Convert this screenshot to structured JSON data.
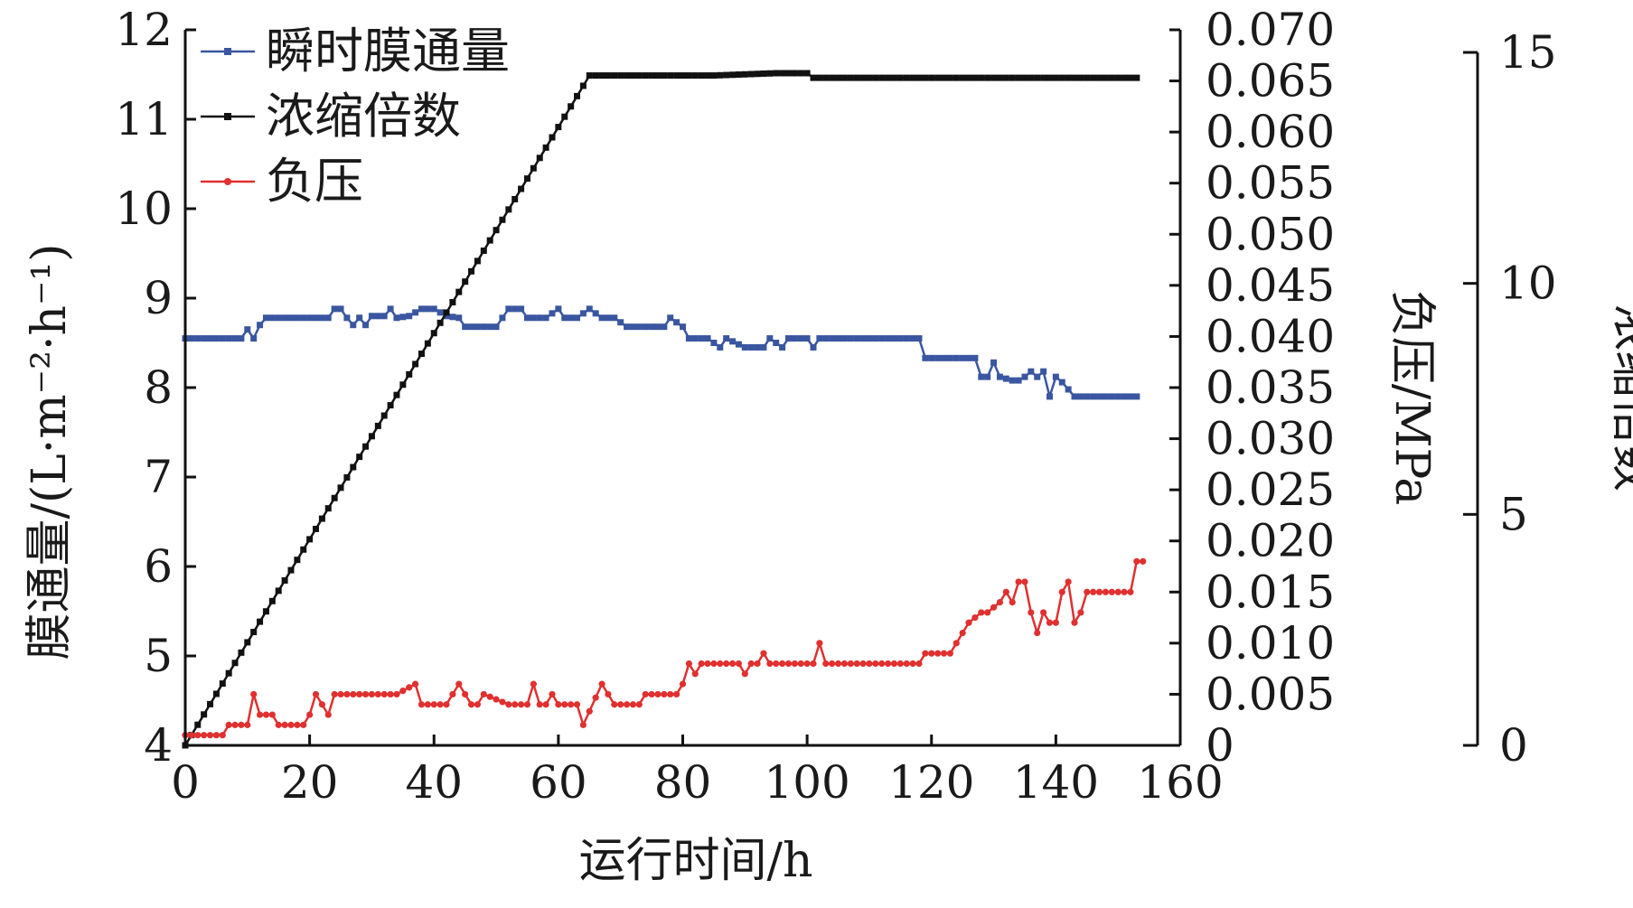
{
  "chart_data": {
    "type": "line",
    "xlabel": "运行时间/h",
    "xlim": [
      0,
      160
    ],
    "xticks": [
      0,
      20,
      40,
      60,
      80,
      100,
      120,
      140,
      160
    ],
    "axes": {
      "flux": {
        "label": "膜通量/(L·m⁻²·h⁻¹)",
        "lim": [
          4,
          12
        ],
        "ticks": [
          4,
          5,
          6,
          7,
          8,
          9,
          10,
          11,
          12
        ],
        "tick_labels": [
          "4",
          "5",
          "6",
          "7",
          "8",
          "9",
          "10",
          "11",
          "12"
        ]
      },
      "pressure": {
        "label": "负压/MPa",
        "lim": [
          0,
          0.07
        ],
        "ticks": [
          0,
          0.005,
          0.01,
          0.015,
          0.02,
          0.025,
          0.03,
          0.035,
          0.04,
          0.045,
          0.05,
          0.055,
          0.06,
          0.065,
          0.07
        ],
        "tick_labels": [
          "0",
          "0.005",
          "0.010",
          "0.015",
          "0.020",
          "0.025",
          "0.030",
          "0.035",
          "0.040",
          "0.045",
          "0.050",
          "0.055",
          "0.060",
          "0.065",
          "0.070"
        ]
      },
      "conc": {
        "label": "浓缩倍数",
        "lim": [
          0,
          15
        ],
        "ticks": [
          0,
          5,
          10,
          15
        ],
        "tick_labels": [
          "0",
          "5",
          "10",
          "15"
        ]
      }
    },
    "legend_position": "top-left",
    "series": [
      {
        "name": "瞬时膜通量",
        "axis": "flux",
        "color": "#3a56a0",
        "marker": "square",
        "points": [
          [
            0,
            8.55
          ],
          [
            5,
            8.55
          ],
          [
            9,
            8.55
          ],
          [
            10,
            8.65
          ],
          [
            11,
            8.55
          ],
          [
            12,
            8.7
          ],
          [
            13,
            8.78
          ],
          [
            18,
            8.78
          ],
          [
            23,
            8.78
          ],
          [
            24,
            8.88
          ],
          [
            25,
            8.88
          ],
          [
            26,
            8.78
          ],
          [
            27,
            8.7
          ],
          [
            28,
            8.78
          ],
          [
            29,
            8.7
          ],
          [
            30,
            8.8
          ],
          [
            32,
            8.8
          ],
          [
            33,
            8.88
          ],
          [
            34,
            8.78
          ],
          [
            36,
            8.8
          ],
          [
            38,
            8.88
          ],
          [
            40,
            8.88
          ],
          [
            42,
            8.8
          ],
          [
            44,
            8.78
          ],
          [
            45,
            8.68
          ],
          [
            48,
            8.68
          ],
          [
            50,
            8.68
          ],
          [
            52,
            8.88
          ],
          [
            54,
            8.88
          ],
          [
            55,
            8.78
          ],
          [
            58,
            8.78
          ],
          [
            60,
            8.88
          ],
          [
            61,
            8.78
          ],
          [
            63,
            8.78
          ],
          [
            65,
            8.88
          ],
          [
            67,
            8.78
          ],
          [
            69,
            8.78
          ],
          [
            71,
            8.68
          ],
          [
            75,
            8.68
          ],
          [
            77,
            8.68
          ],
          [
            78,
            8.78
          ],
          [
            80,
            8.68
          ],
          [
            81,
            8.55
          ],
          [
            84,
            8.55
          ],
          [
            86,
            8.45
          ],
          [
            87,
            8.55
          ],
          [
            90,
            8.45
          ],
          [
            93,
            8.45
          ],
          [
            94,
            8.55
          ],
          [
            96,
            8.45
          ],
          [
            97,
            8.55
          ],
          [
            100,
            8.55
          ],
          [
            101,
            8.45
          ],
          [
            102,
            8.55
          ],
          [
            106,
            8.55
          ],
          [
            110,
            8.55
          ],
          [
            115,
            8.55
          ],
          [
            118,
            8.55
          ],
          [
            119,
            8.33
          ],
          [
            124,
            8.33
          ],
          [
            127,
            8.33
          ],
          [
            128,
            8.12
          ],
          [
            129,
            8.12
          ],
          [
            130,
            8.28
          ],
          [
            131,
            8.12
          ],
          [
            133,
            8.08
          ],
          [
            134,
            8.08
          ],
          [
            135,
            8.12
          ],
          [
            136,
            8.18
          ],
          [
            137,
            8.12
          ],
          [
            138,
            8.18
          ],
          [
            139,
            7.9
          ],
          [
            140,
            8.12
          ],
          [
            141,
            8.06
          ],
          [
            143,
            7.9
          ],
          [
            148,
            7.9
          ],
          [
            153,
            7.9
          ]
        ]
      },
      {
        "name": "浓缩倍数",
        "axis": "conc",
        "color": "#111111",
        "marker": "square",
        "points": [
          [
            0,
            0
          ],
          [
            65,
            14.5
          ],
          [
            72,
            14.5
          ],
          [
            85,
            14.5
          ],
          [
            95,
            14.55
          ],
          [
            100,
            14.55
          ],
          [
            101,
            14.45
          ],
          [
            110,
            14.45
          ],
          [
            153,
            14.45
          ]
        ]
      },
      {
        "name": "负压",
        "axis": "pressure",
        "color": "#e03030",
        "marker": "circle",
        "points": [
          [
            0,
            0.001
          ],
          [
            4,
            0.001
          ],
          [
            6,
            0.001
          ],
          [
            7,
            0.002
          ],
          [
            10,
            0.002
          ],
          [
            11,
            0.005
          ],
          [
            12,
            0.003
          ],
          [
            14,
            0.003
          ],
          [
            15,
            0.002
          ],
          [
            19,
            0.002
          ],
          [
            20,
            0.003
          ],
          [
            21,
            0.005
          ],
          [
            22,
            0.004
          ],
          [
            23,
            0.003
          ],
          [
            24,
            0.005
          ],
          [
            30,
            0.005
          ],
          [
            34,
            0.005
          ],
          [
            37,
            0.006
          ],
          [
            38,
            0.004
          ],
          [
            42,
            0.004
          ],
          [
            44,
            0.006
          ],
          [
            46,
            0.004
          ],
          [
            47,
            0.004
          ],
          [
            48,
            0.005
          ],
          [
            52,
            0.004
          ],
          [
            55,
            0.004
          ],
          [
            56,
            0.006
          ],
          [
            57,
            0.004
          ],
          [
            58,
            0.004
          ],
          [
            59,
            0.005
          ],
          [
            60,
            0.004
          ],
          [
            63,
            0.004
          ],
          [
            64,
            0.002
          ],
          [
            67,
            0.006
          ],
          [
            69,
            0.004
          ],
          [
            73,
            0.004
          ],
          [
            74,
            0.005
          ],
          [
            79,
            0.005
          ],
          [
            80,
            0.006
          ],
          [
            81,
            0.008
          ],
          [
            82,
            0.007
          ],
          [
            83,
            0.008
          ],
          [
            86,
            0.008
          ],
          [
            89,
            0.008
          ],
          [
            90,
            0.007
          ],
          [
            91,
            0.008
          ],
          [
            92,
            0.008
          ],
          [
            93,
            0.009
          ],
          [
            94,
            0.008
          ],
          [
            101,
            0.008
          ],
          [
            102,
            0.01
          ],
          [
            103,
            0.008
          ],
          [
            104,
            0.008
          ],
          [
            110,
            0.008
          ],
          [
            117,
            0.008
          ],
          [
            118,
            0.008
          ],
          [
            119,
            0.009
          ],
          [
            123,
            0.009
          ],
          [
            124,
            0.01
          ],
          [
            125,
            0.011
          ],
          [
            126,
            0.012
          ],
          [
            128,
            0.013
          ],
          [
            129,
            0.013
          ],
          [
            131,
            0.014
          ],
          [
            132,
            0.015
          ],
          [
            133,
            0.014
          ],
          [
            134,
            0.016
          ],
          [
            135,
            0.016
          ],
          [
            136,
            0.013
          ],
          [
            137,
            0.011
          ],
          [
            138,
            0.013
          ],
          [
            139,
            0.012
          ],
          [
            140,
            0.012
          ],
          [
            141,
            0.015
          ],
          [
            142,
            0.016
          ],
          [
            143,
            0.012
          ],
          [
            144,
            0.013
          ],
          [
            145,
            0.015
          ],
          [
            148,
            0.015
          ],
          [
            150,
            0.015
          ],
          [
            152,
            0.015
          ],
          [
            153,
            0.018
          ],
          [
            154,
            0.018
          ]
        ]
      }
    ]
  }
}
